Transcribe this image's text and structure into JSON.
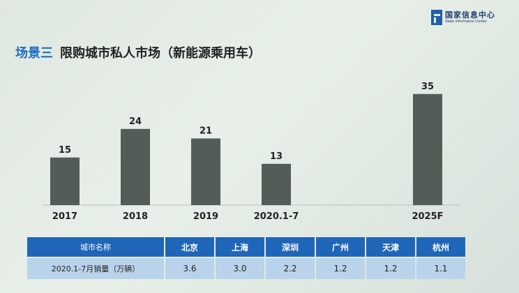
{
  "header": {
    "org_name_cn": "国家信息中心",
    "org_name_en": "State Information Center"
  },
  "title": {
    "prefix": "场景三",
    "main": "限购城市私人市场（新能源乘用车）"
  },
  "chart_data": {
    "type": "bar",
    "categories": [
      "2017",
      "2018",
      "2019",
      "2020.1-7",
      "2025F"
    ],
    "values": [
      15,
      24,
      21,
      13,
      35
    ],
    "ylim": [
      0,
      40
    ],
    "bar_color": "#545c58",
    "grid": false
  },
  "table": {
    "header_label": "城市名称",
    "cities": [
      "北京",
      "上海",
      "深圳",
      "广州",
      "天津",
      "杭州"
    ],
    "row_label": "2020.1-7月销量（万辆）",
    "values": [
      "3.6",
      "3.0",
      "2.2",
      "1.2",
      "1.2",
      "1.1"
    ],
    "header_color": "#1f66b8",
    "row_color": "#b8d3ea"
  }
}
